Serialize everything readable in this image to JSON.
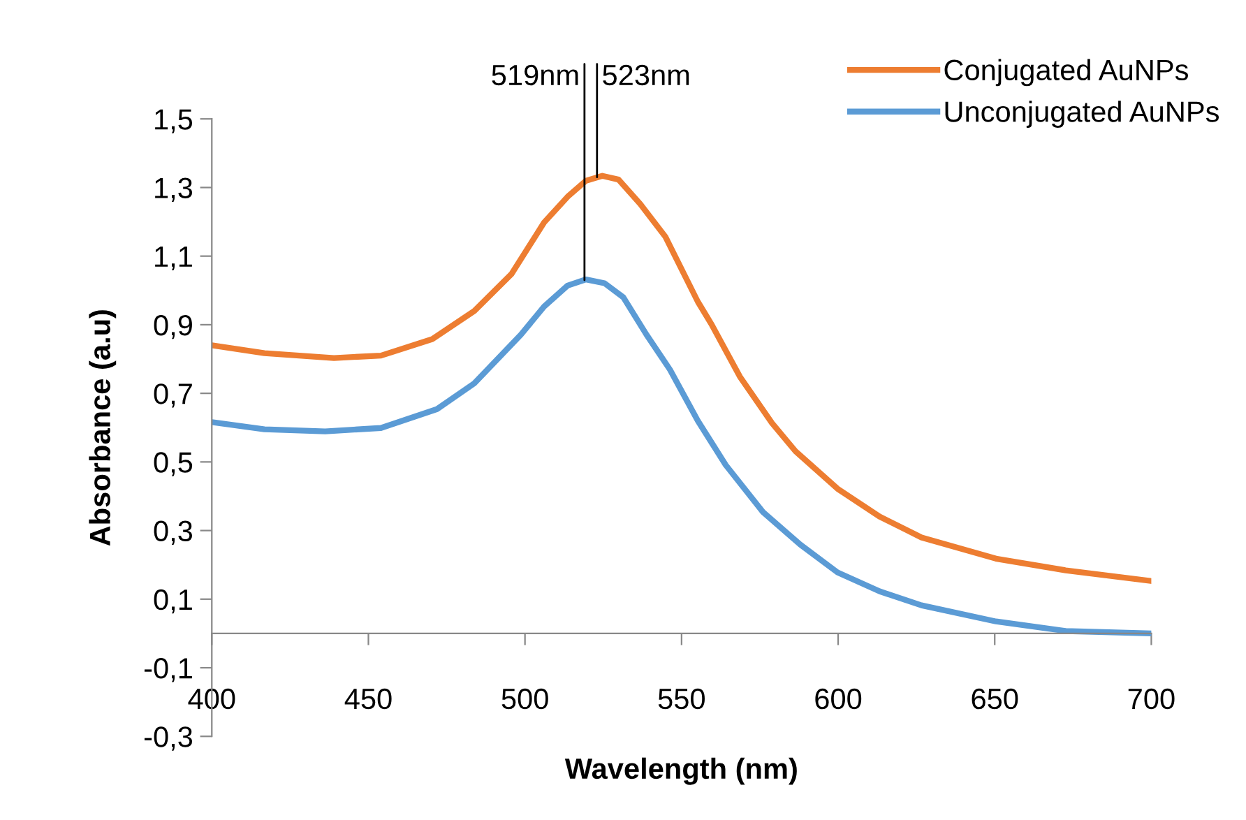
{
  "chart_data": {
    "type": "line",
    "xlabel": "Wavelength (nm)",
    "ylabel": "Absorbance (a.u)",
    "xlim": [
      400,
      700
    ],
    "xticks": [
      400,
      450,
      500,
      550,
      600,
      650,
      700
    ],
    "ylim": [
      -0.3,
      1.5
    ],
    "yticks": [
      {
        "value": -0.3,
        "label": "-0,3"
      },
      {
        "value": -0.1,
        "label": "-0,1"
      },
      {
        "value": 0.1,
        "label": "0,1"
      },
      {
        "value": 0.3,
        "label": "0,3"
      },
      {
        "value": 0.5,
        "label": "0,5"
      },
      {
        "value": 0.7,
        "label": "0,7"
      },
      {
        "value": 0.9,
        "label": "0,9"
      },
      {
        "value": 1.1,
        "label": "1,1"
      },
      {
        "value": 1.3,
        "label": "1,3"
      },
      {
        "value": 1.5,
        "label": "1,5"
      }
    ],
    "grid": false,
    "legend": "top right",
    "marker": "none",
    "line_style": "solid",
    "series": [
      {
        "name": "Conjugated AuNPs",
        "color": "#ed7d31",
        "x": [
          400,
          416.8,
          439,
          454,
          470.4,
          483.8,
          495.7,
          506.1,
          513.6,
          519.5,
          524.7,
          529.9,
          536.8,
          544.8,
          555.2,
          559.7,
          568.6,
          578.9,
          586.4,
          599.8,
          613.2,
          626.6,
          650.4,
          672.7,
          700
        ],
        "values": [
          0.84,
          0.817,
          0.803,
          0.81,
          0.858,
          0.94,
          1.048,
          1.198,
          1.273,
          1.32,
          1.334,
          1.323,
          1.252,
          1.157,
          0.967,
          0.899,
          0.749,
          0.613,
          0.531,
          0.422,
          0.341,
          0.28,
          0.218,
          0.184,
          0.153
        ]
      },
      {
        "name": "Unconjugated AuNPs",
        "color": "#5b9bd5",
        "x": [
          400,
          416.8,
          436.2,
          454,
          471.9,
          483.8,
          498.7,
          506.1,
          513.6,
          519.5,
          525.4,
          531.4,
          538.8,
          546.3,
          555.2,
          564.1,
          576,
          587.9,
          599.8,
          613.2,
          626.6,
          650.4,
          672.7,
          700
        ],
        "values": [
          0.616,
          0.595,
          0.589,
          0.599,
          0.654,
          0.729,
          0.871,
          0.953,
          1.014,
          1.032,
          1.021,
          0.98,
          0.871,
          0.769,
          0.62,
          0.491,
          0.354,
          0.259,
          0.178,
          0.123,
          0.082,
          0.035,
          0.007,
          0.0
        ]
      }
    ],
    "annotations": [
      {
        "text": "519nm",
        "x": 519,
        "y": 1.03
      },
      {
        "text": "523nm",
        "x": 523,
        "y": 1.33
      }
    ]
  }
}
